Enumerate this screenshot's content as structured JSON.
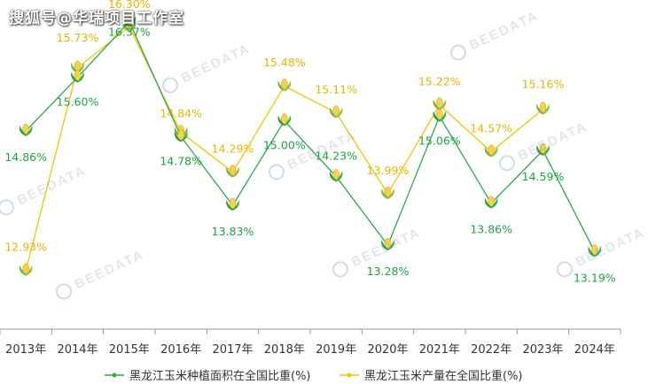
{
  "header": {
    "watermark": "搜狐号@华瑞项目工作室"
  },
  "watermark_text": "BEEDATA",
  "colors": {
    "area": "#2ea84a",
    "production": "#f5c400",
    "area_label": "#1fa33f",
    "production_label": "#e8b500",
    "axis": "#999999",
    "tick_text": "#333333"
  },
  "chart_data": {
    "type": "line",
    "categories": [
      "2013年",
      "2014年",
      "2015年",
      "2016年",
      "2017年",
      "2018年",
      "2019年",
      "2020年",
      "2021年",
      "2022年",
      "2023年",
      "2024年"
    ],
    "series": [
      {
        "name": "黑龙江玉米种植面积在全国比重(%)",
        "values": [
          14.86,
          15.6,
          16.37,
          14.78,
          13.83,
          15.0,
          14.23,
          13.28,
          15.06,
          13.86,
          14.59,
          13.19
        ],
        "labels": [
          "14.86%",
          "15.60%",
          "16.37%",
          "14.78%",
          "13.83%",
          "15.00%",
          "14.23%",
          "13.28%",
          "15.06%",
          "13.86%",
          "14.59%",
          "13.19%"
        ]
      },
      {
        "name": "黑龙江玉米产量在全国比重(%)",
        "values": [
          12.93,
          15.73,
          16.3,
          14.84,
          14.29,
          15.48,
          15.11,
          13.99,
          15.22,
          14.57,
          15.16,
          null
        ],
        "labels": [
          "12.93%",
          "15.73%",
          "16.30%",
          "14.84%",
          "14.29%",
          "15.48%",
          "15.11%",
          "13.99%",
          "15.22%",
          "14.57%",
          "15.16%",
          ""
        ]
      }
    ],
    "legend_position": "bottom",
    "grid": false
  }
}
